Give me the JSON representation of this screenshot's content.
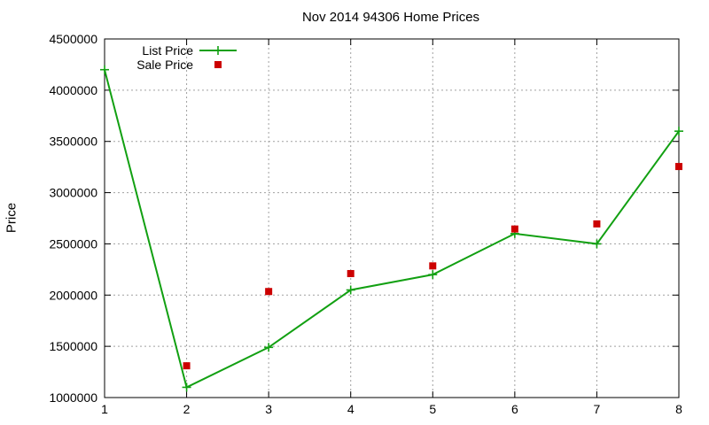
{
  "chart_data": {
    "type": "line",
    "title": "Nov 2014 94306 Home Prices",
    "xlabel": "",
    "ylabel": "Price",
    "x": [
      1,
      2,
      3,
      4,
      5,
      6,
      7,
      8
    ],
    "xlim": [
      1,
      8
    ],
    "ylim": [
      1000000,
      4500000
    ],
    "yticks": [
      1000000,
      1500000,
      2000000,
      2500000,
      3000000,
      3500000,
      4000000,
      4500000
    ],
    "xticks": [
      1,
      2,
      3,
      4,
      5,
      6,
      7,
      8
    ],
    "grid": true,
    "legend_position": "top-left",
    "series": [
      {
        "name": "List Price",
        "style": "line+cross",
        "color": "#12a012",
        "values": [
          4200000,
          1100000,
          1490000,
          2050000,
          2200000,
          2600000,
          2500000,
          3600000
        ]
      },
      {
        "name": "Sale Price",
        "style": "square",
        "color": "#cc0000",
        "values": [
          null,
          1310000,
          2035000,
          2210000,
          2285000,
          2645000,
          2695000,
          3255000
        ]
      }
    ]
  }
}
